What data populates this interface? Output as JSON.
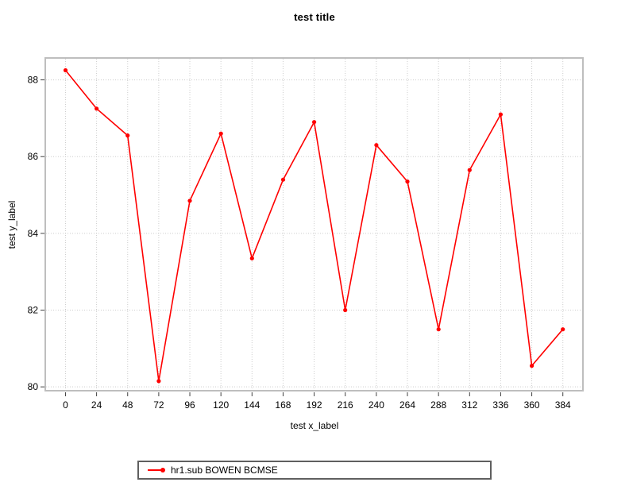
{
  "chart_data": {
    "type": "line",
    "title": "test title",
    "xlabel": "test x_label",
    "ylabel": "test y_label",
    "xlim": [
      -15,
      399.5
    ],
    "ylim": [
      79.9,
      88.55
    ],
    "xticks": [
      0,
      24,
      48,
      72,
      96,
      120,
      144,
      168,
      192,
      216,
      240,
      264,
      288,
      312,
      336,
      360,
      384
    ],
    "yticks": [
      80,
      82,
      84,
      86,
      88
    ],
    "grid": true,
    "legend_position": "bottom-center",
    "series": [
      {
        "name": "hr1.sub BOWEN BCMSE",
        "color": "#ff0000",
        "marker": "filled-circle",
        "x": [
          0,
          24,
          48,
          72,
          96,
          120,
          144,
          168,
          192,
          216,
          240,
          264,
          288,
          312,
          336,
          360,
          384
        ],
        "values": [
          88.25,
          87.25,
          86.55,
          80.15,
          84.85,
          86.6,
          83.35,
          85.4,
          86.9,
          82.0,
          86.3,
          85.35,
          81.5,
          85.65,
          87.1,
          80.55,
          81.5
        ]
      }
    ]
  },
  "colors": {
    "accent": "#ff0000",
    "grid": "#cdcdcd",
    "frame": "#bebebe",
    "tick": "#404040",
    "legend_border": "#5f5f5f",
    "background": "#ffffff",
    "text": "#000000"
  }
}
